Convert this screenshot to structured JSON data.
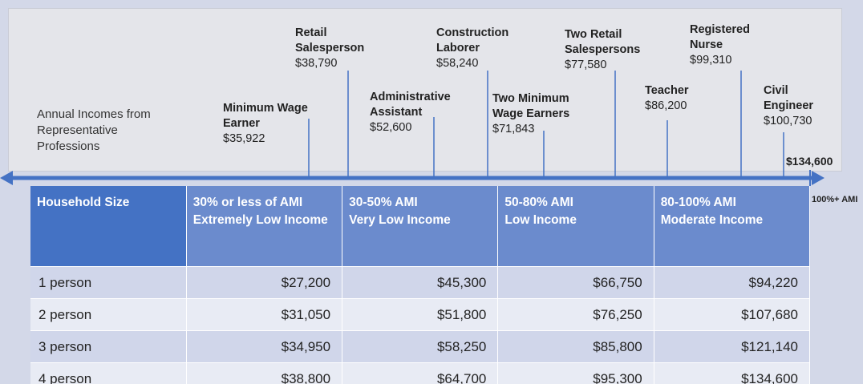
{
  "caption": "Annual Incomes from Representative Professions",
  "professions": [
    {
      "name": "Minimum Wage Earner",
      "income": "$35,922"
    },
    {
      "name": "Retail Salesperson",
      "income": "$38,790"
    },
    {
      "name": "Administrative Assistant",
      "income": "$52,600"
    },
    {
      "name": "Construction Laborer",
      "income": "$58,240"
    },
    {
      "name": "Two Minimum Wage Earners",
      "income": "$71,843"
    },
    {
      "name": "Two Retail Salespersons",
      "income": "$77,580"
    },
    {
      "name": "Teacher",
      "income": "$86,200"
    },
    {
      "name": "Registered Nurse",
      "income": "$99,310"
    },
    {
      "name": "Civil Engineer",
      "income": "$100,730"
    }
  ],
  "end_label": "$134,600",
  "ami_label": "100%+ AMI",
  "table": {
    "header": [
      [
        "Household Size"
      ],
      [
        "30% or less of AMI",
        "Extremely Low Income"
      ],
      [
        "30-50% AMI",
        "Very Low Income"
      ],
      [
        "50-80% AMI",
        "Low Income"
      ],
      [
        "80-100% AMI",
        "Moderate Income"
      ]
    ],
    "rows": [
      [
        "1 person",
        "$27,200",
        "$45,300",
        "$66,750",
        "$94,220"
      ],
      [
        "2 person",
        "$31,050",
        "$51,800",
        "$76,250",
        "$107,680"
      ],
      [
        "3 person",
        "$34,950",
        "$58,250",
        "$85,800",
        "$121,140"
      ],
      [
        "4 person",
        "$38,800",
        "$64,700",
        "$95,300",
        "$134,600"
      ]
    ]
  }
}
